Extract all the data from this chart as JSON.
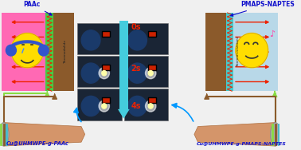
{
  "bg_color": "#f0f0f0",
  "left_panel_bg": "#ff69b4",
  "right_panel_bg": "#b8d8e8",
  "fabric_color": "#8B5A2B",
  "left_zigzag_color": "#44cc44",
  "right_zigzag_color": "#44cccc",
  "arrow_red": "#ee2200",
  "center_arrow_color": "#44ccdd",
  "time_color": "#ee2200",
  "center_times": [
    "0s",
    "2s",
    "4s"
  ],
  "label_color": "#1111cc",
  "left_bottom_label": "Cu@UHMWPE-g-PAAc",
  "right_bottom_label": "Cu@UHMWPE-g-PMAPS-NAPTES",
  "left_top_label": "PAAc",
  "right_top_label": "PMAPS-NAPTES",
  "left_rot_text": "Thermodalide",
  "right_rot_text": "Thermal-resistant",
  "emoji_yellow": "#ffdd00",
  "emoji_outline": "#cc9900",
  "arm_color": "#d4956a",
  "arm_edge": "#b07040",
  "cylinder_color": "#aaaaaa",
  "connector_green": "#88dd44",
  "connector_brown": "#8B5A2B",
  "connector_cyan": "#44bbcc",
  "photo_dark": "#1a2535",
  "photo_blue": "#1a3a6a",
  "music_color": "#ff44aa",
  "figsize": [
    3.78,
    1.88
  ],
  "dpi": 100
}
